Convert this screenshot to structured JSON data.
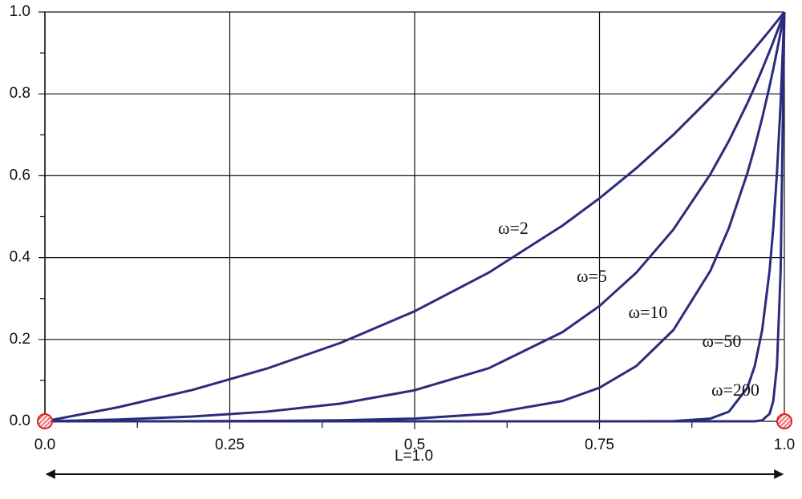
{
  "chart_data": {
    "type": "line",
    "x": [
      0,
      0.1,
      0.2,
      0.3,
      0.4,
      0.5,
      0.6,
      0.7,
      0.75,
      0.8,
      0.85,
      0.9,
      0.925,
      0.95,
      0.96,
      0.97,
      0.98,
      0.985,
      0.99,
      0.995,
      1
    ],
    "series": [
      {
        "name": "ω=2",
        "color": "#2b2c7c",
        "values": [
          0,
          0.0347,
          0.077,
          0.1287,
          0.1918,
          0.2689,
          0.3631,
          0.4782,
          0.545,
          0.6187,
          0.7003,
          0.7904,
          0.8389,
          0.89,
          0.9111,
          0.9327,
          0.9546,
          0.9658,
          0.9771,
          0.9885,
          1
        ]
      },
      {
        "name": "ω=5",
        "color": "#2b2c7c",
        "values": [
          0,
          0.0044,
          0.0117,
          0.0236,
          0.0433,
          0.0759,
          0.1295,
          0.2179,
          0.2817,
          0.3636,
          0.4688,
          0.6039,
          0.6851,
          0.7773,
          0.8175,
          0.8598,
          0.9042,
          0.9273,
          0.9509,
          0.9752,
          1
        ]
      },
      {
        "name": "ω=10",
        "color": "#2b2c7c",
        "values": [
          0,
          0.0001,
          0.0003,
          0.0009,
          0.0024,
          0.0067,
          0.0183,
          0.0497,
          0.0821,
          0.1353,
          0.2231,
          0.3679,
          0.4724,
          0.6065,
          0.6703,
          0.7408,
          0.8187,
          0.8607,
          0.9048,
          0.9512,
          1
        ]
      },
      {
        "name": "ω=50",
        "color": "#2b2c7c",
        "values": [
          0,
          0,
          0,
          0,
          0,
          0,
          0,
          0,
          0,
          0,
          0.0006,
          0.0067,
          0.0235,
          0.0821,
          0.1353,
          0.2231,
          0.3679,
          0.4724,
          0.6065,
          0.7788,
          1
        ]
      },
      {
        "name": "ω=200",
        "color": "#2b2c7c",
        "values": [
          0,
          0,
          0,
          0,
          0,
          0,
          0,
          0,
          0,
          0,
          0,
          0,
          0,
          0,
          0,
          0.0025,
          0.0183,
          0.0498,
          0.1353,
          0.3679,
          1
        ]
      }
    ],
    "xlim": [
      0,
      1
    ],
    "ylim": [
      0,
      1
    ],
    "xticks": [
      {
        "value": 0,
        "label": "0.0"
      },
      0.25,
      0.5,
      0.75,
      {
        "value": 1,
        "label": "1.0"
      }
    ],
    "xminorticks": [
      0.125,
      0.375,
      0.625,
      0.875
    ],
    "yticks": [
      {
        "value": 0,
        "label": "0.0"
      },
      {
        "value": 0.2,
        "label": "0.2"
      },
      {
        "value": 0.4,
        "label": "0.4"
      },
      {
        "value": 0.6,
        "label": "0.6"
      },
      {
        "value": 0.8,
        "label": "0.8"
      },
      {
        "value": 1,
        "label": "1.0"
      }
    ],
    "yminorticks": [
      0.1,
      0.3,
      0.5,
      0.7,
      0.9
    ],
    "grid": true,
    "annotation": "L=1.0"
  }
}
